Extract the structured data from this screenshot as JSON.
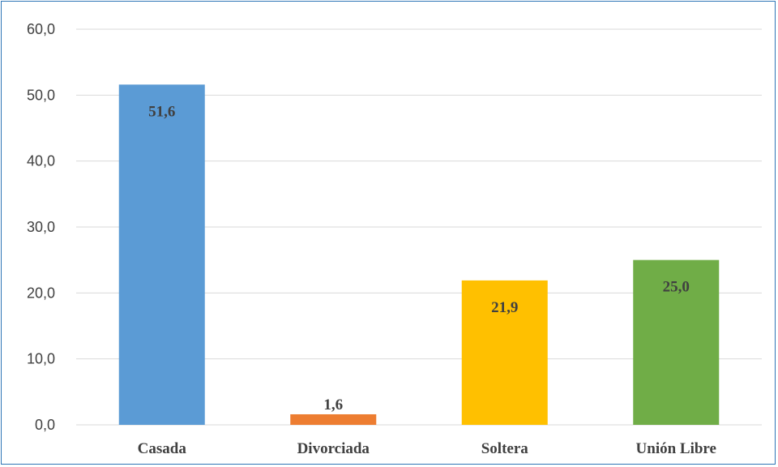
{
  "chart_data": {
    "type": "bar",
    "categories": [
      "Casada",
      "Divorciada",
      "Soltera",
      "Unión Libre"
    ],
    "values": [
      51.6,
      1.6,
      21.9,
      25.0
    ],
    "data_labels": [
      "51,6",
      "1,6",
      "21,9",
      "25,0"
    ],
    "colors": [
      "#5b9bd5",
      "#ed7d31",
      "#ffc000",
      "#70ad47"
    ],
    "title": "",
    "xlabel": "",
    "ylabel": "",
    "ylim": [
      0,
      60
    ],
    "yticks": [
      0,
      10,
      20,
      30,
      40,
      50,
      60
    ],
    "ytick_labels": [
      "0,0",
      "10,0",
      "20,0",
      "30,0",
      "40,0",
      "50,0",
      "60,0"
    ],
    "grid": true,
    "legend": "none"
  }
}
